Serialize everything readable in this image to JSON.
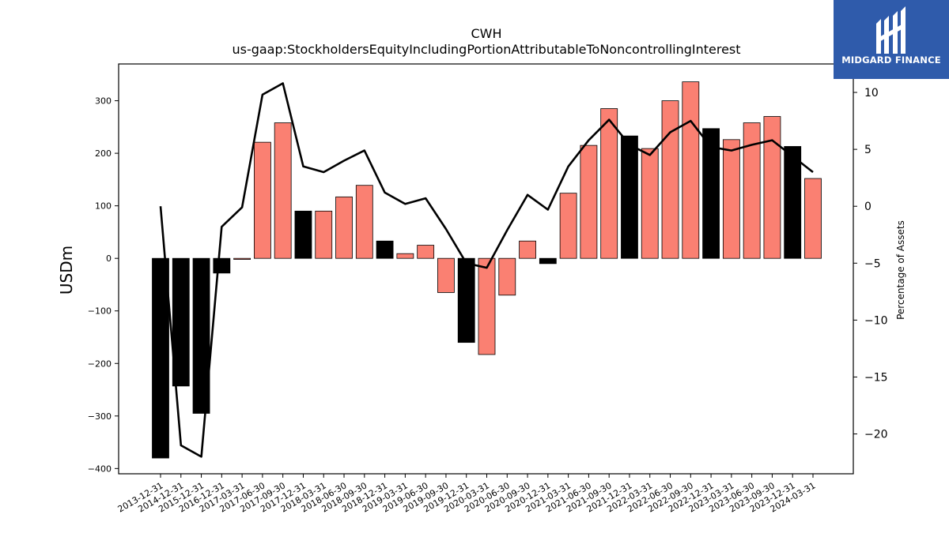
{
  "chart_data": {
    "type": "bar",
    "title": "CWH",
    "subtitle": "us-gaap:StockholdersEquityIncludingPortionAttributableToNoncontrollingInterest",
    "ylabel": "USDm",
    "y2label": "Percentage of Assets",
    "ylim": [
      -410,
      370
    ],
    "y2lim": [
      -23.5,
      12.5
    ],
    "yticks": [
      -400,
      -300,
      -200,
      -100,
      0,
      100,
      200,
      300
    ],
    "y2ticks": [
      -20,
      -15,
      -10,
      -5,
      0,
      5,
      10
    ],
    "categories": [
      "2013-12-31",
      "2014-12-31",
      "2015-12-31",
      "2016-12-31",
      "2017-03-31",
      "2017-06-30",
      "2017-09-30",
      "2017-12-31",
      "2018-03-31",
      "2018-06-30",
      "2018-09-30",
      "2018-12-31",
      "2019-03-31",
      "2019-06-30",
      "2019-09-30",
      "2019-12-31",
      "2020-03-31",
      "2020-06-30",
      "2020-09-30",
      "2020-12-31",
      "2021-03-31",
      "2021-06-30",
      "2021-09-30",
      "2021-12-31",
      "2022-03-31",
      "2022-06-30",
      "2022-09-30",
      "2022-12-31",
      "2023-03-31",
      "2023-06-30",
      "2023-09-30",
      "2023-12-31",
      "2024-03-31"
    ],
    "series": [
      {
        "kind": "bar",
        "values": [
          -380,
          -243,
          -295,
          -28,
          -2,
          221,
          258,
          90,
          90,
          117,
          139,
          33,
          9,
          25,
          -65,
          -160,
          -183,
          -70,
          33,
          -10,
          124,
          215,
          285,
          233,
          209,
          300,
          336,
          247,
          226,
          258,
          270,
          213,
          152
        ],
        "fiscal_year_end": [
          true,
          true,
          true,
          true,
          false,
          false,
          false,
          true,
          false,
          false,
          false,
          true,
          false,
          false,
          false,
          true,
          false,
          false,
          false,
          true,
          false,
          false,
          false,
          true,
          false,
          false,
          false,
          true,
          false,
          false,
          false,
          true,
          false
        ]
      },
      {
        "kind": "line",
        "axis": "right",
        "values": [
          0,
          -21,
          -22,
          -1.8,
          -0.1,
          9.8,
          10.8,
          3.5,
          3.0,
          4.0,
          4.9,
          1.2,
          0.2,
          0.7,
          -2.0,
          -5.0,
          -5.4,
          -2.1,
          1.0,
          -0.3,
          3.5,
          5.8,
          7.6,
          5.4,
          4.5,
          6.5,
          7.5,
          5.2,
          4.9,
          5.4,
          5.8,
          4.4,
          3.0
        ]
      }
    ],
    "colors": {
      "annual": "#000000",
      "quarterly": "#fa8072",
      "line": "#000000"
    }
  },
  "logo": {
    "text": "MIDGARD FINANCE"
  }
}
